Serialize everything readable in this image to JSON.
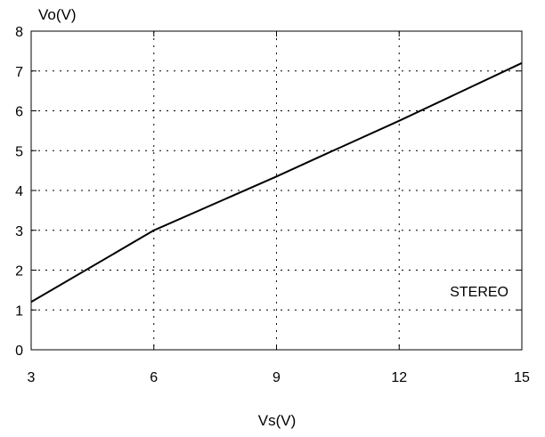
{
  "chart_data": {
    "type": "line",
    "xlabel": "Vs(V)",
    "ylabel": "Vo(V)",
    "xlim": [
      3,
      15
    ],
    "ylim": [
      0,
      8
    ],
    "xticks": [
      "3",
      "6",
      "9",
      "12",
      "15"
    ],
    "yticks": [
      "0",
      "1",
      "2",
      "3",
      "4",
      "5",
      "6",
      "7",
      "8"
    ],
    "grid": true,
    "annotation": "STEREO",
    "series": [
      {
        "x": [
          3,
          6,
          9,
          10,
          12,
          15
        ],
        "y": [
          1.2,
          3.0,
          4.35,
          4.82,
          5.75,
          7.2
        ]
      }
    ],
    "colors": {
      "line": "#000000",
      "grid": "#000000",
      "frame": "#000000"
    }
  }
}
